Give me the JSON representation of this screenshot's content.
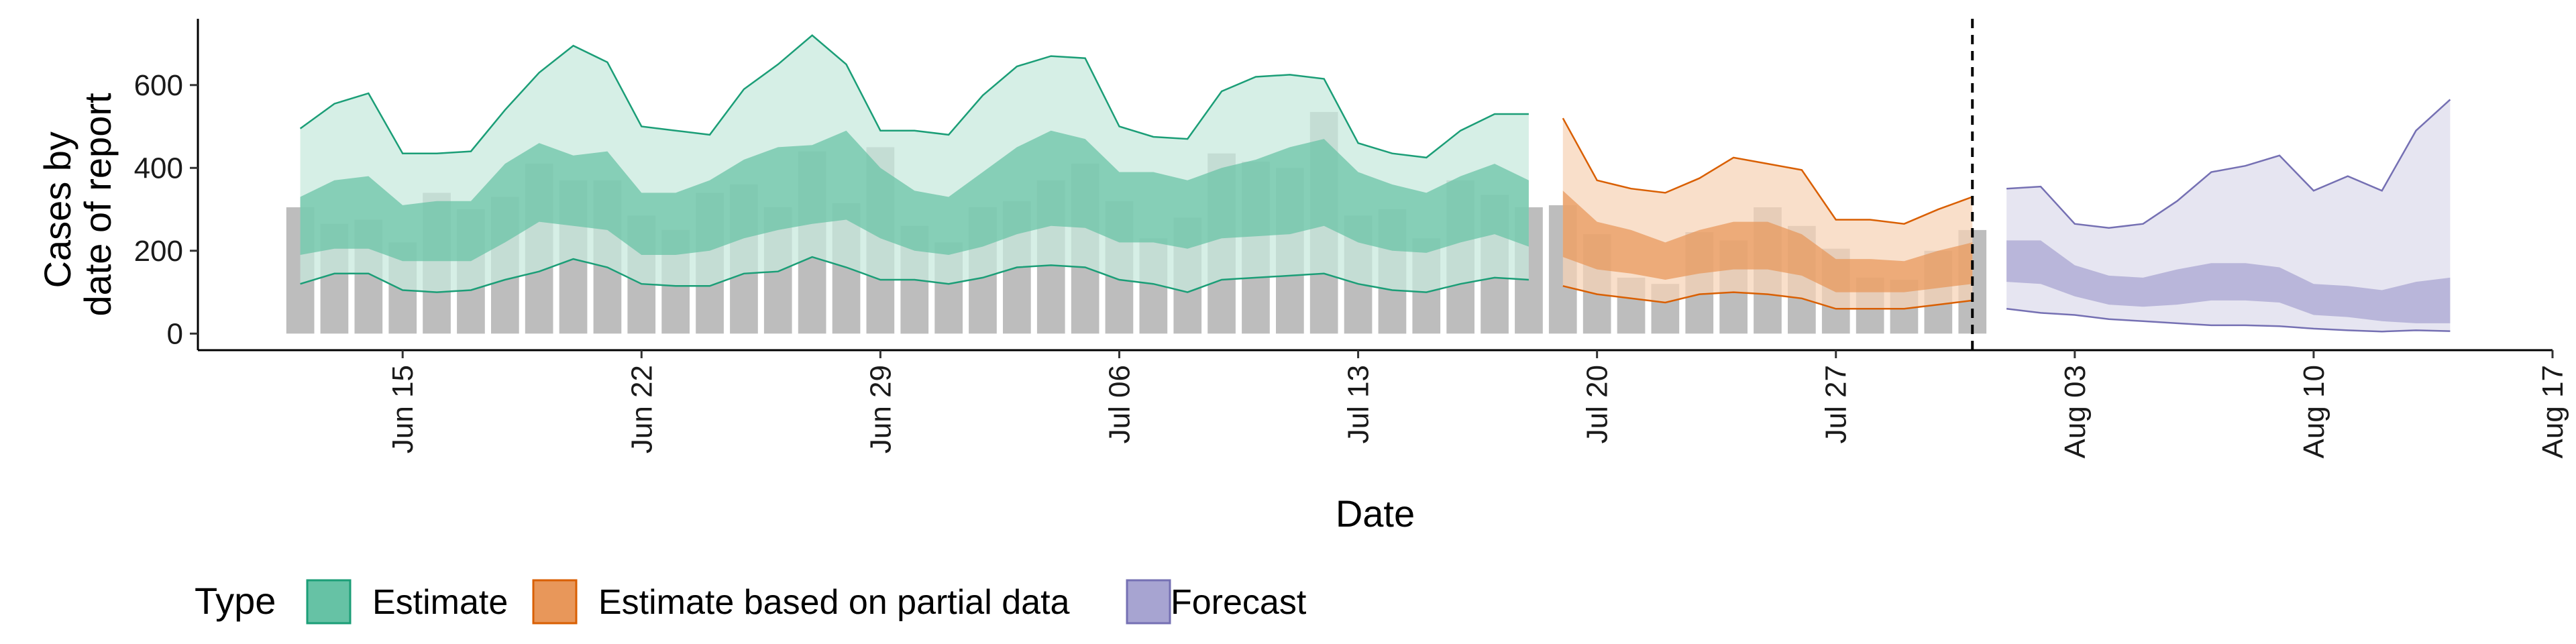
{
  "chart_data": {
    "type": "area",
    "title": "",
    "xlabel": "Date",
    "ylabel_lines": [
      "Cases by",
      "date of report"
    ],
    "y_ticks": [
      0,
      200,
      400,
      600
    ],
    "ylim": [
      -40,
      760
    ],
    "xlim": [
      "2020-06-09",
      "2020-08-17"
    ],
    "x_ticks": [
      {
        "date": "2020-06-15",
        "label": "Jun 15"
      },
      {
        "date": "2020-06-22",
        "label": "Jun 22"
      },
      {
        "date": "2020-06-29",
        "label": "Jun 29"
      },
      {
        "date": "2020-07-06",
        "label": "Jul 06"
      },
      {
        "date": "2020-07-13",
        "label": "Jul 13"
      },
      {
        "date": "2020-07-20",
        "label": "Jul 20"
      },
      {
        "date": "2020-07-27",
        "label": "Jul 27"
      },
      {
        "date": "2020-08-03",
        "label": "Aug 03"
      },
      {
        "date": "2020-08-10",
        "label": "Aug 10"
      },
      {
        "date": "2020-08-17",
        "label": "Aug 17"
      }
    ],
    "forecast_date": "2020-07-31",
    "legend": {
      "title": "Type",
      "position": "bottom",
      "items": [
        {
          "label": "Estimate",
          "fill": "#66c2a5",
          "stroke": "#1b9e77"
        },
        {
          "label": "Estimate based on partial data",
          "fill": "#e8975a",
          "stroke": "#d95f02"
        },
        {
          "label": "Forecast",
          "fill": "#a7a4d1",
          "stroke": "#7570b3"
        }
      ]
    },
    "colors": {
      "bar": "#bdbdbd",
      "estimate_outer": "#c6e9dc",
      "estimate_inner": "#66c2a5",
      "estimate_line": "#1b9e77",
      "partial_outer": "#f6d3b6",
      "partial_inner": "#e8975a",
      "partial_line": "#d95f02",
      "forecast_outer": "#dcdbec",
      "forecast_inner": "#a7a4d1",
      "forecast_line": "#7570b3"
    },
    "bars": {
      "start_date": "2020-06-12",
      "values": [
        305,
        265,
        275,
        220,
        340,
        300,
        330,
        410,
        370,
        370,
        285,
        250,
        340,
        360,
        305,
        440,
        315,
        450,
        260,
        220,
        305,
        320,
        370,
        410,
        320,
        230,
        280,
        435,
        415,
        400,
        535,
        285,
        300,
        230,
        370,
        335,
        305,
        310,
        240,
        135,
        120,
        245,
        225,
        305,
        260,
        205,
        135,
        130,
        200,
        250
      ]
    },
    "series": [
      {
        "name": "Estimate",
        "start_date": "2020-06-12",
        "outer_upper": [
          495,
          555,
          580,
          435,
          435,
          440,
          540,
          630,
          695,
          655,
          500,
          490,
          480,
          590,
          650,
          720,
          650,
          490,
          490,
          480,
          575,
          645,
          670,
          665,
          500,
          475,
          470,
          585,
          620,
          625,
          615,
          460,
          435,
          425,
          490,
          530,
          530
        ],
        "inner_upper": [
          330,
          370,
          380,
          310,
          320,
          320,
          410,
          460,
          430,
          440,
          340,
          340,
          370,
          420,
          450,
          455,
          490,
          400,
          345,
          330,
          390,
          450,
          490,
          470,
          390,
          390,
          370,
          400,
          420,
          450,
          470,
          390,
          360,
          340,
          380,
          410,
          370
        ],
        "inner_lower": [
          190,
          205,
          205,
          175,
          175,
          175,
          220,
          270,
          260,
          250,
          190,
          190,
          200,
          230,
          250,
          265,
          275,
          230,
          200,
          190,
          210,
          240,
          260,
          255,
          220,
          220,
          205,
          230,
          235,
          240,
          260,
          220,
          200,
          195,
          220,
          240,
          210
        ],
        "outer_lower": [
          120,
          145,
          145,
          105,
          100,
          105,
          130,
          150,
          180,
          160,
          120,
          115,
          115,
          145,
          150,
          185,
          160,
          130,
          130,
          120,
          135,
          160,
          165,
          160,
          130,
          120,
          100,
          130,
          135,
          140,
          145,
          120,
          105,
          100,
          120,
          135,
          130
        ]
      },
      {
        "name": "Estimate based on partial data",
        "start_date": "2020-07-19",
        "outer_upper": [
          520,
          370,
          350,
          340,
          375,
          425,
          410,
          395,
          275,
          275,
          265,
          300,
          330
        ],
        "inner_upper": [
          345,
          270,
          250,
          220,
          250,
          270,
          270,
          240,
          180,
          180,
          175,
          200,
          220
        ],
        "inner_lower": [
          185,
          155,
          145,
          130,
          145,
          155,
          155,
          140,
          100,
          100,
          100,
          110,
          120
        ],
        "outer_lower": [
          115,
          95,
          85,
          75,
          95,
          100,
          95,
          85,
          60,
          60,
          60,
          70,
          80
        ]
      },
      {
        "name": "Forecast",
        "start_date": "2020-08-01",
        "outer_upper": [
          350,
          355,
          265,
          255,
          265,
          320,
          390,
          405,
          430,
          345,
          380,
          345,
          490,
          565
        ],
        "inner_upper": [
          225,
          225,
          165,
          140,
          135,
          155,
          170,
          170,
          160,
          120,
          115,
          105,
          125,
          135
        ],
        "inner_lower": [
          125,
          120,
          90,
          70,
          65,
          70,
          80,
          80,
          75,
          45,
          40,
          30,
          25,
          25
        ],
        "outer_lower": [
          60,
          50,
          45,
          35,
          30,
          25,
          20,
          20,
          18,
          12,
          8,
          5,
          8,
          6
        ]
      }
    ]
  }
}
